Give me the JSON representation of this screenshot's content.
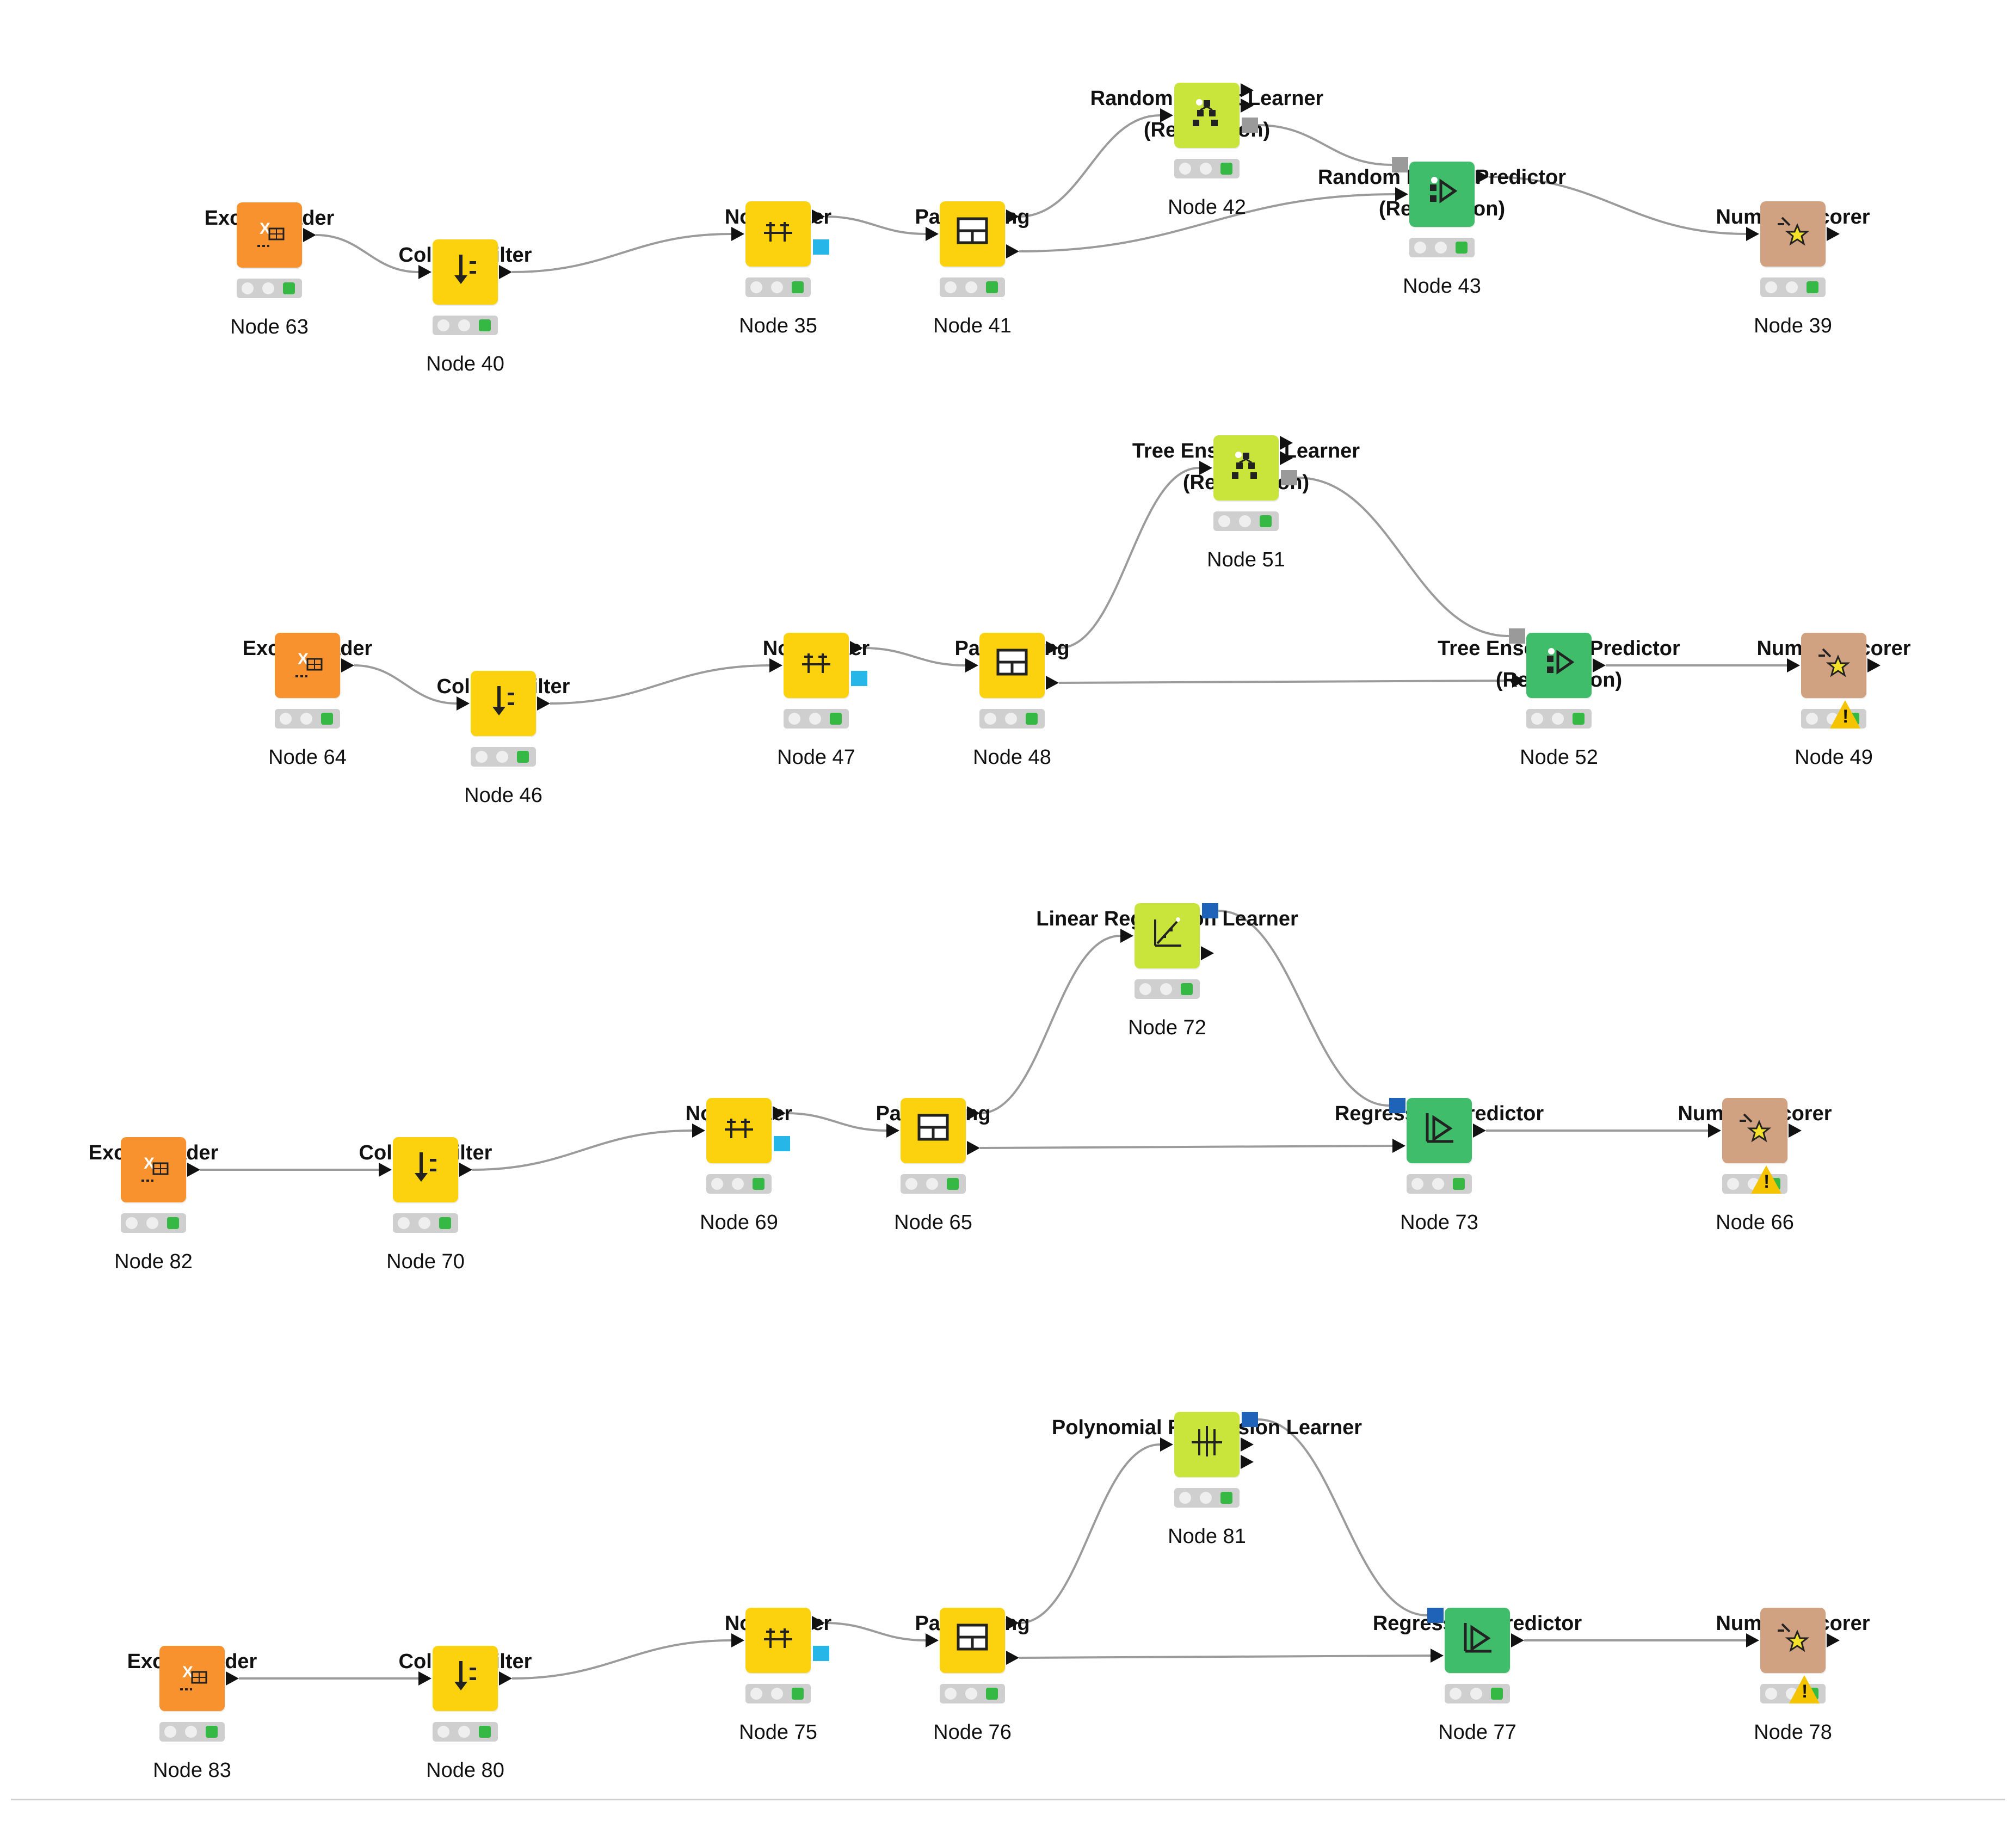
{
  "workflows": [
    {
      "nodes": [
        {
          "id": "n63",
          "type": "excel-reader",
          "title": "Excel Reader",
          "caption": "Node 63",
          "color": "orange"
        },
        {
          "id": "n40",
          "type": "column-filter",
          "title": "Column Filter",
          "caption": "Node 40",
          "color": "yellow"
        },
        {
          "id": "n35",
          "type": "normalizer",
          "title": "Normalizer",
          "caption": "Node 35",
          "color": "yellow"
        },
        {
          "id": "n41",
          "type": "partitioning",
          "title": "Partitioning",
          "caption": "Node 41",
          "color": "yellow"
        },
        {
          "id": "n42",
          "type": "forest-learner",
          "title": "Random Forest Learner (Regression)",
          "caption": "Node 42",
          "color": "lime"
        },
        {
          "id": "n43",
          "type": "forest-predictor",
          "title": "Random Forest Predictor (Regression)",
          "caption": "Node 43",
          "color": "green"
        },
        {
          "id": "n39",
          "type": "numeric-scorer",
          "title": "Numeric Scorer",
          "caption": "Node 39",
          "color": "brown",
          "warning": false
        }
      ]
    },
    {
      "nodes": [
        {
          "id": "n64",
          "type": "excel-reader",
          "title": "Excel Reader",
          "caption": "Node 64",
          "color": "orange"
        },
        {
          "id": "n46",
          "type": "column-filter",
          "title": "Column Filter",
          "caption": "Node 46",
          "color": "yellow"
        },
        {
          "id": "n47",
          "type": "normalizer",
          "title": "Normalizer",
          "caption": "Node 47",
          "color": "yellow"
        },
        {
          "id": "n48",
          "type": "partitioning",
          "title": "Partitioning",
          "caption": "Node 48",
          "color": "yellow"
        },
        {
          "id": "n51",
          "type": "tree-learner",
          "title": "Tree Ensemble Learner (Regression)",
          "caption": "Node 51",
          "color": "lime"
        },
        {
          "id": "n52",
          "type": "tree-predictor",
          "title": "Tree Ensemble Predictor (Regression)",
          "caption": "Node 52",
          "color": "green"
        },
        {
          "id": "n49",
          "type": "numeric-scorer",
          "title": "Numeric Scorer",
          "caption": "Node 49",
          "color": "brown",
          "warning": true
        }
      ]
    },
    {
      "nodes": [
        {
          "id": "n82",
          "type": "excel-reader",
          "title": "Excel Reader",
          "caption": "Node 82",
          "color": "orange"
        },
        {
          "id": "n70",
          "type": "column-filter",
          "title": "Column Filter",
          "caption": "Node 70",
          "color": "yellow"
        },
        {
          "id": "n69",
          "type": "normalizer",
          "title": "Normalizer",
          "caption": "Node 69",
          "color": "yellow"
        },
        {
          "id": "n65",
          "type": "partitioning",
          "title": "Partitioning",
          "caption": "Node 65",
          "color": "yellow"
        },
        {
          "id": "n72",
          "type": "linear-learner",
          "title": "Linear Regression Learner",
          "caption": "Node 72",
          "color": "lime"
        },
        {
          "id": "n73",
          "type": "regression-predictor",
          "title": "Regression Predictor",
          "caption": "Node 73",
          "color": "green"
        },
        {
          "id": "n66",
          "type": "numeric-scorer",
          "title": "Numeric Scorer",
          "caption": "Node 66",
          "color": "brown",
          "warning": true
        }
      ]
    },
    {
      "nodes": [
        {
          "id": "n83",
          "type": "excel-reader",
          "title": "Excel Reader",
          "caption": "Node 83",
          "color": "orange"
        },
        {
          "id": "n80",
          "type": "column-filter",
          "title": "Column Filter",
          "caption": "Node 80",
          "color": "yellow"
        },
        {
          "id": "n75",
          "type": "normalizer",
          "title": "Normalizer",
          "caption": "Node 75",
          "color": "yellow"
        },
        {
          "id": "n76",
          "type": "partitioning",
          "title": "Partitioning",
          "caption": "Node 76",
          "color": "yellow"
        },
        {
          "id": "n81",
          "type": "polynomial-learner",
          "title": "Polynomial Regression Learner",
          "caption": "Node 81",
          "color": "lime"
        },
        {
          "id": "n77",
          "type": "regression-predictor",
          "title": "Regression Predictor",
          "caption": "Node 77",
          "color": "green"
        },
        {
          "id": "n78",
          "type": "numeric-scorer",
          "title": "Numeric Scorer",
          "caption": "Node 78",
          "color": "brown",
          "warning": true
        }
      ]
    }
  ],
  "colors": {
    "orange": "#f7922e",
    "yellow": "#fcd20f",
    "lime": "#c9e43a",
    "green": "#3fbd6b",
    "brown": "#d1a281",
    "wire": "#9b9b9b",
    "port_cyan": "#27b6e8",
    "port_blue": "#1f63b8",
    "status_green": "#35b844",
    "warning": "#f5c400"
  },
  "icons": {
    "excel-reader": "table-x-icon",
    "column-filter": "filter-arrow-icon",
    "normalizer": "normalize-icon",
    "partitioning": "partition-icon",
    "forest-learner": "forest-learner-icon",
    "forest-predictor": "forest-predictor-icon",
    "tree-learner": "tree-learner-icon",
    "tree-predictor": "tree-predictor-icon",
    "linear-learner": "linear-chart-icon",
    "regression-predictor": "regression-predict-icon",
    "polynomial-learner": "polynomial-icon",
    "numeric-scorer": "scorer-star-icon"
  }
}
